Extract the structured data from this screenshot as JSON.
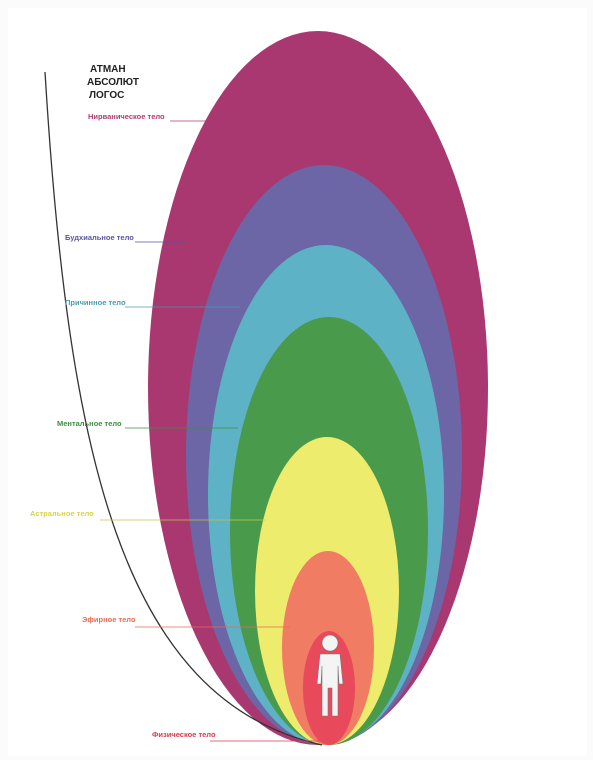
{
  "header": {
    "lines": [
      "АТМАН",
      "АБСОЛЮТ",
      "ЛОГОС"
    ]
  },
  "bodies": [
    {
      "label": "Нирваническое тело"
    },
    {
      "label": "Будхиальное тело"
    },
    {
      "label": "Причинное тело"
    },
    {
      "label": "Ментальное тело"
    },
    {
      "label": "Астральное тело"
    },
    {
      "label": "Эфирное тело"
    },
    {
      "label": "Физическое тело"
    }
  ]
}
